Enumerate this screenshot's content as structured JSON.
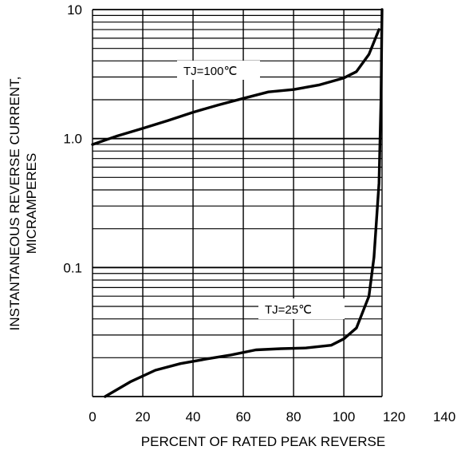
{
  "chart_data": {
    "type": "line",
    "title": "",
    "xlabel": "PERCENT OF RATED PEAK REVERSE",
    "ylabel_lines": [
      "INSTANTANEOUS REVERSE CURRENT,",
      "MICRAMPERES"
    ],
    "x_ticks": [
      "0",
      "20",
      "40",
      "60",
      "80",
      "100",
      "120",
      "140"
    ],
    "y_ticks": [
      "0.1",
      "1.0",
      "10"
    ],
    "y_scale": "log",
    "xlim": [
      0,
      140
    ],
    "ylim": [
      0.01,
      10
    ],
    "grid": true,
    "legend": "none",
    "series": [
      {
        "name": "TJ=100℃",
        "x": [
          0,
          10,
          20,
          30,
          40,
          50,
          60,
          70,
          80,
          90,
          100,
          105,
          110,
          114
        ],
        "y": [
          0.9,
          1.05,
          1.2,
          1.38,
          1.6,
          1.82,
          2.05,
          2.3,
          2.4,
          2.6,
          2.95,
          3.3,
          4.5,
          7.0
        ]
      },
      {
        "name": "TJ=25℃",
        "x": [
          5,
          15,
          25,
          35,
          45,
          55,
          65,
          75,
          85,
          95,
          100,
          105,
          110,
          112,
          114,
          114.8,
          115.1,
          115.2
        ],
        "y": [
          0.01,
          0.013,
          0.016,
          0.018,
          0.0195,
          0.021,
          0.023,
          0.0235,
          0.0238,
          0.025,
          0.028,
          0.034,
          0.06,
          0.12,
          0.45,
          2.0,
          7.0,
          10.0
        ]
      }
    ],
    "annotations": [
      "TJ=100℃",
      "TJ=25℃"
    ]
  }
}
